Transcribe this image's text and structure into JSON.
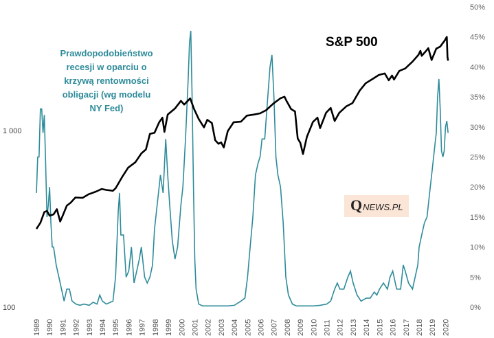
{
  "chart_data": {
    "type": "line",
    "title": "S&P 500",
    "annotation": [
      "Prawdopodobieństwo",
      "recesji w oparciu  o",
      "krzywą rentowności",
      "obligacji  (wg modelu",
      "NY Fed)"
    ],
    "watermark": {
      "q": "Q",
      "rest": "NEWS.PL"
    },
    "x_ticks": [
      "1989",
      "1990",
      "1991",
      "1992",
      "1993",
      "1994",
      "1995",
      "1996",
      "1997",
      "1998",
      "1999",
      "2000",
      "2001",
      "2002",
      "2003",
      "2004",
      "2005",
      "2006",
      "2007",
      "2008",
      "2009",
      "2010",
      "2011",
      "2012",
      "2013",
      "2014",
      "2015",
      "2016",
      "2017",
      "2018",
      "2019",
      "2020"
    ],
    "x_range": [
      1989,
      2020.5
    ],
    "left_axis": {
      "scale": "log",
      "range": [
        100,
        5000
      ],
      "ticks": [
        100,
        1000
      ],
      "tick_labels": [
        "100",
        "1 000"
      ]
    },
    "right_axis": {
      "range": [
        0,
        50
      ],
      "ticks": [
        0,
        5,
        10,
        15,
        20,
        25,
        30,
        35,
        40,
        45,
        50
      ],
      "tick_labels": [
        "0%",
        "5%",
        "10%",
        "15%",
        "20%",
        "25%",
        "30%",
        "35%",
        "40%",
        "45%",
        "50%"
      ]
    },
    "colors": {
      "sp500": "#000000",
      "recession": "#2e8b9a",
      "watermark_bg": "#fbe5d6"
    },
    "series": [
      {
        "name": "S&P 500",
        "axis": "left",
        "points": [
          [
            1989.0,
            277
          ],
          [
            1989.3,
            300
          ],
          [
            1989.6,
            345
          ],
          [
            1989.8,
            350
          ],
          [
            1990.0,
            329
          ],
          [
            1990.3,
            335
          ],
          [
            1990.55,
            358
          ],
          [
            1990.8,
            305
          ],
          [
            1991.0,
            330
          ],
          [
            1991.3,
            375
          ],
          [
            1991.6,
            390
          ],
          [
            1991.95,
            417
          ],
          [
            1992.5,
            415
          ],
          [
            1992.95,
            435
          ],
          [
            1993.5,
            450
          ],
          [
            1993.95,
            466
          ],
          [
            1994.3,
            460
          ],
          [
            1994.8,
            455
          ],
          [
            1995.0,
            470
          ],
          [
            1995.5,
            545
          ],
          [
            1995.95,
            615
          ],
          [
            1996.5,
            660
          ],
          [
            1996.95,
            740
          ],
          [
            1997.3,
            780
          ],
          [
            1997.6,
            955
          ],
          [
            1997.95,
            970
          ],
          [
            1998.3,
            1110
          ],
          [
            1998.55,
            1180
          ],
          [
            1998.7,
            980
          ],
          [
            1998.95,
            1229
          ],
          [
            1999.5,
            1330
          ],
          [
            1999.95,
            1469
          ],
          [
            2000.2,
            1400
          ],
          [
            2000.65,
            1517
          ],
          [
            2000.95,
            1320
          ],
          [
            2001.3,
            1160
          ],
          [
            2001.7,
            1040
          ],
          [
            2001.95,
            1148
          ],
          [
            2002.3,
            1100
          ],
          [
            2002.55,
            880
          ],
          [
            2002.8,
            840
          ],
          [
            2003.0,
            855
          ],
          [
            2003.2,
            800
          ],
          [
            2003.5,
            990
          ],
          [
            2003.95,
            1112
          ],
          [
            2004.5,
            1120
          ],
          [
            2004.95,
            1212
          ],
          [
            2005.5,
            1230
          ],
          [
            2005.95,
            1248
          ],
          [
            2006.4,
            1300
          ],
          [
            2006.95,
            1418
          ],
          [
            2007.5,
            1520
          ],
          [
            2007.8,
            1550
          ],
          [
            2007.95,
            1468
          ],
          [
            2008.3,
            1320
          ],
          [
            2008.6,
            1280
          ],
          [
            2008.8,
            900
          ],
          [
            2009.0,
            850
          ],
          [
            2009.2,
            735
          ],
          [
            2009.5,
            920
          ],
          [
            2009.95,
            1115
          ],
          [
            2010.3,
            1180
          ],
          [
            2010.5,
            1030
          ],
          [
            2010.95,
            1258
          ],
          [
            2011.3,
            1340
          ],
          [
            2011.6,
            1130
          ],
          [
            2011.95,
            1257
          ],
          [
            2012.5,
            1370
          ],
          [
            2012.95,
            1426
          ],
          [
            2013.5,
            1680
          ],
          [
            2013.95,
            1848
          ],
          [
            2014.5,
            1960
          ],
          [
            2014.95,
            2059
          ],
          [
            2015.4,
            2100
          ],
          [
            2015.7,
            1920
          ],
          [
            2015.95,
            2043
          ],
          [
            2016.1,
            1940
          ],
          [
            2016.5,
            2170
          ],
          [
            2016.95,
            2239
          ],
          [
            2017.5,
            2450
          ],
          [
            2017.95,
            2674
          ],
          [
            2018.1,
            2820
          ],
          [
            2018.2,
            2640
          ],
          [
            2018.5,
            2800
          ],
          [
            2018.7,
            2920
          ],
          [
            2018.95,
            2500
          ],
          [
            2019.3,
            2900
          ],
          [
            2019.6,
            2980
          ],
          [
            2019.95,
            3231
          ],
          [
            2020.1,
            3380
          ],
          [
            2020.15,
            2600
          ],
          [
            2020.2,
            2480
          ]
        ]
      },
      {
        "name": "Prawdopodobieństwo recesji",
        "axis": "right",
        "points": [
          [
            1989.0,
            19
          ],
          [
            1989.1,
            25
          ],
          [
            1989.2,
            25
          ],
          [
            1989.3,
            33
          ],
          [
            1989.4,
            33
          ],
          [
            1989.5,
            29
          ],
          [
            1989.6,
            32
          ],
          [
            1989.7,
            24
          ],
          [
            1989.8,
            15
          ],
          [
            1989.9,
            17
          ],
          [
            1990.0,
            20
          ],
          [
            1990.1,
            14
          ],
          [
            1990.2,
            10
          ],
          [
            1990.3,
            10
          ],
          [
            1990.5,
            7
          ],
          [
            1990.7,
            5
          ],
          [
            1990.9,
            3
          ],
          [
            1991.1,
            1
          ],
          [
            1991.3,
            3
          ],
          [
            1991.5,
            3
          ],
          [
            1991.7,
            1
          ],
          [
            1992.0,
            0.5
          ],
          [
            1992.3,
            0.3
          ],
          [
            1992.6,
            0.5
          ],
          [
            1993.0,
            0.3
          ],
          [
            1993.3,
            0.8
          ],
          [
            1993.6,
            0.5
          ],
          [
            1993.8,
            2
          ],
          [
            1994.0,
            1
          ],
          [
            1994.3,
            0.5
          ],
          [
            1994.6,
            0.8
          ],
          [
            1994.8,
            1
          ],
          [
            1995.0,
            5
          ],
          [
            1995.2,
            16
          ],
          [
            1995.3,
            19
          ],
          [
            1995.4,
            12
          ],
          [
            1995.6,
            12
          ],
          [
            1995.8,
            5
          ],
          [
            1996.0,
            6
          ],
          [
            1996.2,
            10
          ],
          [
            1996.4,
            4
          ],
          [
            1996.6,
            6
          ],
          [
            1996.8,
            8
          ],
          [
            1996.95,
            10
          ],
          [
            1997.2,
            5
          ],
          [
            1997.4,
            4
          ],
          [
            1997.6,
            5
          ],
          [
            1997.8,
            7
          ],
          [
            1997.95,
            13
          ],
          [
            1998.2,
            18
          ],
          [
            1998.4,
            22
          ],
          [
            1998.6,
            19
          ],
          [
            1998.8,
            28
          ],
          [
            1998.95,
            22
          ],
          [
            1999.1,
            17
          ],
          [
            1999.3,
            11
          ],
          [
            1999.5,
            8
          ],
          [
            1999.7,
            10
          ],
          [
            1999.95,
            17
          ],
          [
            2000.1,
            20
          ],
          [
            2000.3,
            28
          ],
          [
            2000.5,
            38
          ],
          [
            2000.6,
            44
          ],
          [
            2000.7,
            46
          ],
          [
            2000.8,
            35
          ],
          [
            2000.9,
            20
          ],
          [
            2001.0,
            8
          ],
          [
            2001.1,
            3
          ],
          [
            2001.3,
            0.5
          ],
          [
            2001.6,
            0.2
          ],
          [
            2002.0,
            0.2
          ],
          [
            2002.5,
            0.2
          ],
          [
            2003.0,
            0.2
          ],
          [
            2003.5,
            0.2
          ],
          [
            2004.0,
            0.3
          ],
          [
            2004.5,
            1
          ],
          [
            2004.8,
            1.5
          ],
          [
            2005.0,
            5
          ],
          [
            2005.2,
            10
          ],
          [
            2005.4,
            15
          ],
          [
            2005.6,
            22
          ],
          [
            2005.8,
            24
          ],
          [
            2005.95,
            25
          ],
          [
            2006.1,
            28
          ],
          [
            2006.3,
            28
          ],
          [
            2006.5,
            34
          ],
          [
            2006.7,
            40
          ],
          [
            2006.85,
            42
          ],
          [
            2007.0,
            35
          ],
          [
            2007.15,
            25
          ],
          [
            2007.3,
            22
          ],
          [
            2007.5,
            20
          ],
          [
            2007.7,
            14
          ],
          [
            2007.9,
            5
          ],
          [
            2008.1,
            2
          ],
          [
            2008.4,
            0.5
          ],
          [
            2008.7,
            0.2
          ],
          [
            2009.0,
            0.2
          ],
          [
            2009.5,
            0.2
          ],
          [
            2010.0,
            0.2
          ],
          [
            2010.5,
            0.3
          ],
          [
            2011.0,
            0.5
          ],
          [
            2011.3,
            1
          ],
          [
            2011.6,
            3
          ],
          [
            2011.8,
            4
          ],
          [
            2012.0,
            3
          ],
          [
            2012.3,
            3
          ],
          [
            2012.6,
            5
          ],
          [
            2012.8,
            6
          ],
          [
            2013.0,
            4
          ],
          [
            2013.3,
            2
          ],
          [
            2013.6,
            1
          ],
          [
            2014.0,
            1.5
          ],
          [
            2014.3,
            1.5
          ],
          [
            2014.6,
            2.5
          ],
          [
            2014.8,
            2
          ],
          [
            2015.0,
            3
          ],
          [
            2015.3,
            4
          ],
          [
            2015.6,
            3
          ],
          [
            2015.8,
            5
          ],
          [
            2016.0,
            6
          ],
          [
            2016.3,
            3
          ],
          [
            2016.6,
            3
          ],
          [
            2016.8,
            7
          ],
          [
            2016.95,
            6
          ],
          [
            2017.2,
            4
          ],
          [
            2017.5,
            3
          ],
          [
            2017.7,
            5
          ],
          [
            2017.9,
            7
          ],
          [
            2018.0,
            10
          ],
          [
            2018.2,
            12
          ],
          [
            2018.4,
            14
          ],
          [
            2018.6,
            15
          ],
          [
            2018.8,
            19
          ],
          [
            2019.0,
            23
          ],
          [
            2019.2,
            27
          ],
          [
            2019.3,
            29
          ],
          [
            2019.4,
            35
          ],
          [
            2019.5,
            38
          ],
          [
            2019.6,
            33
          ],
          [
            2019.7,
            26
          ],
          [
            2019.8,
            25
          ],
          [
            2019.9,
            26
          ],
          [
            2020.0,
            30
          ],
          [
            2020.1,
            31
          ],
          [
            2020.2,
            29
          ]
        ]
      }
    ]
  }
}
